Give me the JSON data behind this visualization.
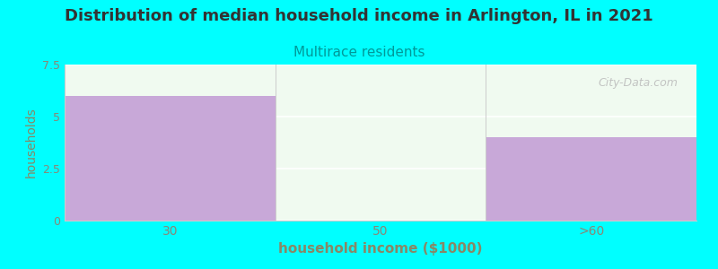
{
  "title": "Distribution of median household income in Arlington, IL in 2021",
  "subtitle": "Multirace residents",
  "xlabel": "household income ($1000)",
  "ylabel": "households",
  "background_color": "#00FFFF",
  "plot_bg_color": "#f0faf0",
  "bar_categories": [
    "30",
    "50",
    ">60"
  ],
  "bar_values": [
    6.0,
    0.0,
    4.0
  ],
  "bar_color": "#c8a8d8",
  "ylim": [
    0,
    7.5
  ],
  "yticks": [
    0,
    2.5,
    5,
    7.5
  ],
  "title_fontsize": 13,
  "subtitle_fontsize": 11,
  "subtitle_color": "#009999",
  "axis_label_color": "#888866",
  "tick_label_color": "#888877",
  "xlabel_fontsize": 11,
  "ylabel_fontsize": 10,
  "watermark_text": "City-Data.com",
  "watermark_color": "#bbbbbb",
  "title_color": "#333333"
}
